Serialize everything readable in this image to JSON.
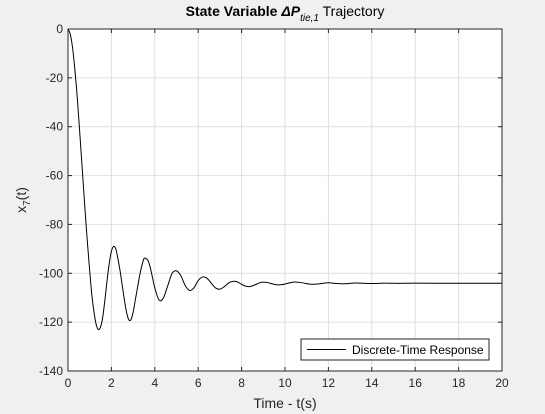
{
  "chart_data": {
    "type": "line",
    "title": {
      "prefix": "State Variable ",
      "symbol": "ΔP",
      "subscript": "tie,1",
      "suffix": " Trajectory"
    },
    "xlabel": "Time - t(s)",
    "ylabel": {
      "base": "x",
      "subscript": "7",
      "suffix": "(t)"
    },
    "xlim": [
      0,
      20
    ],
    "ylim": [
      -140,
      0
    ],
    "xticks": [
      0,
      2,
      4,
      6,
      8,
      10,
      12,
      14,
      16,
      18,
      20
    ],
    "yticks": [
      0,
      -20,
      -40,
      -60,
      -80,
      -100,
      -120,
      -140
    ],
    "grid": true,
    "legend_location": "bottom-right",
    "series": [
      {
        "name": "Discrete-Time Response",
        "color": "#000000",
        "x": [
          0,
          0.1,
          0.2,
          0.3,
          0.4,
          0.5,
          0.6,
          0.7,
          0.8,
          0.9,
          1.0,
          1.1,
          1.2,
          1.3,
          1.4,
          1.5,
          1.6,
          1.7,
          1.8,
          1.9,
          2.0,
          2.1,
          2.2,
          2.3,
          2.4,
          2.5,
          2.6,
          2.7,
          2.8,
          2.9,
          3.0,
          3.1,
          3.2,
          3.3,
          3.4,
          3.5,
          3.6,
          3.7,
          3.8,
          3.9,
          4.0,
          4.2,
          4.4,
          4.6,
          4.8,
          5.0,
          5.2,
          5.4,
          5.6,
          5.8,
          6.0,
          6.2,
          6.4,
          6.6,
          6.8,
          7.0,
          7.2,
          7.4,
          7.6,
          7.8,
          8.0,
          8.2,
          8.4,
          8.6,
          8.8,
          9.0,
          9.2,
          9.4,
          9.6,
          9.8,
          10.0,
          10.4,
          10.8,
          11.2,
          11.6,
          12.0,
          12.4,
          12.8,
          13.2,
          13.6,
          14.0,
          14.5,
          15.0,
          15.5,
          16.0,
          17.0,
          18.0,
          19.0,
          20.0
        ],
        "y": [
          0,
          -2,
          -7,
          -15,
          -25,
          -37,
          -50,
          -63,
          -76,
          -88,
          -99,
          -109,
          -116,
          -121,
          -123,
          -122,
          -118,
          -111,
          -103,
          -96,
          -91,
          -89,
          -90,
          -94,
          -99,
          -105,
          -111,
          -116,
          -119,
          -119,
          -116,
          -111,
          -106,
          -101,
          -97,
          -94,
          -94,
          -95,
          -98,
          -102,
          -106,
          -111,
          -110,
          -105,
          -100,
          -99,
          -101,
          -105,
          -107,
          -106,
          -103,
          -101.5,
          -102,
          -104,
          -106,
          -106.5,
          -105.5,
          -104,
          -103.3,
          -103.5,
          -104.5,
          -105.3,
          -105.4,
          -104.8,
          -104,
          -103.6,
          -103.8,
          -104.3,
          -104.7,
          -104.7,
          -104.4,
          -103.6,
          -103.9,
          -104.5,
          -104.3,
          -103.9,
          -104.2,
          -104.3,
          -104.0,
          -104.1,
          -104.2,
          -104.05,
          -104.1,
          -104.1,
          -104.05,
          -104.1,
          -104.1,
          -104.1,
          -104.1
        ]
      }
    ]
  }
}
